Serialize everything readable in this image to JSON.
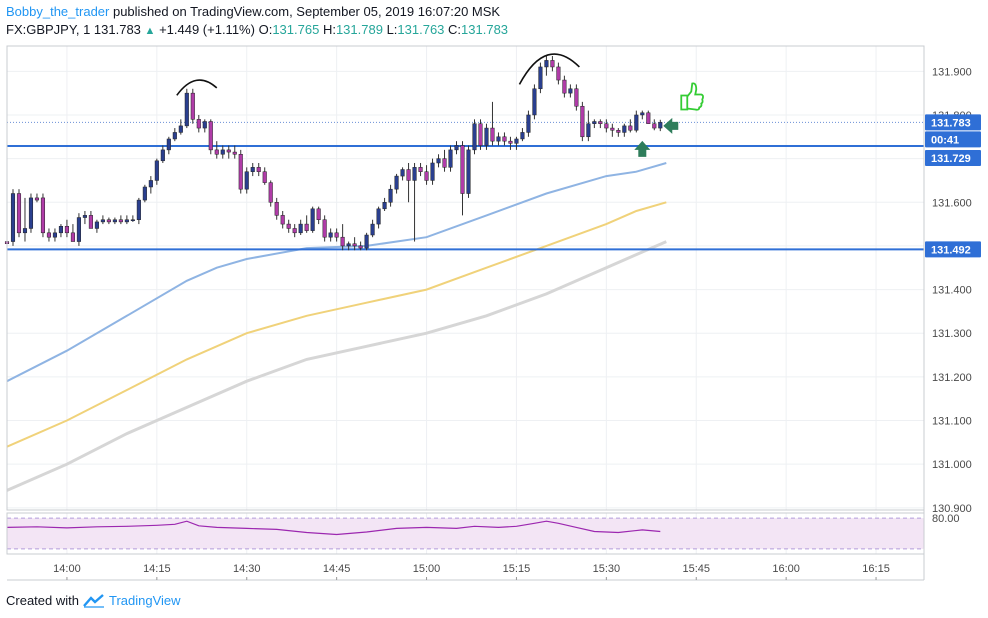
{
  "header": {
    "author": "Bobby_the_trader",
    "published": " published on TradingView.com, September 05, 2019 16:07:20 MSK",
    "symbol": "FX:GBPJPY, 1",
    "last": "131.783",
    "change_arrow": "▲",
    "change": "+1.449 (+1.11%)",
    "o_label": "O:",
    "o": "131.765",
    "h_label": "H:",
    "h": "131.789",
    "l_label": "L:",
    "l": "131.763",
    "c_label": "C:",
    "c": "131.783"
  },
  "footer": {
    "created_with": "Created with",
    "brand": "TradingView"
  },
  "colors": {
    "bull": "#2a3f8f",
    "bear": "#b03ca8",
    "ma_fast": "#8fb4e3",
    "ma_mid": "#f0d27a",
    "ma_slow": "#d6d6d6",
    "level": "#2f6fd6",
    "rsi": "#9c27b0",
    "rsi_band": "#f3e5f5",
    "price_tag": "#2f6fd6",
    "arrow": "#2e7d5b",
    "thumb": "#33cc33"
  },
  "price_tags": {
    "last": "131.783",
    "countdown": "00:41",
    "upper_level": "131.729",
    "lower_level": "131.492"
  },
  "rsi_axis_label": "80.00",
  "chart_data": {
    "type": "candlestick",
    "y_ticks": [
      "131.900",
      "131.800",
      "131.700",
      "131.600",
      "131.500",
      "131.400",
      "131.300",
      "131.200",
      "131.100",
      "131.000",
      "130.900"
    ],
    "y_tick_values": [
      131.9,
      131.8,
      131.7,
      131.6,
      131.5,
      131.4,
      131.3,
      131.2,
      131.1,
      131.0,
      130.9
    ],
    "ylim": [
      130.895,
      131.958
    ],
    "x_ticks": [
      "14:00",
      "14:15",
      "14:30",
      "14:45",
      "15:00",
      "15:15",
      "15:30",
      "15:45",
      "16:00",
      "16:15"
    ],
    "x_tick_minutes": [
      0,
      15,
      30,
      45,
      60,
      75,
      90,
      105,
      120,
      135
    ],
    "xlim_minutes": [
      -10,
      143
    ],
    "levels": [
      131.729,
      131.492
    ],
    "candles": [
      [
        -10,
        131.51,
        131.51,
        131.5,
        131.505
      ],
      [
        -9,
        131.51,
        131.63,
        131.5,
        131.62
      ],
      [
        -8,
        131.62,
        131.63,
        131.52,
        131.53
      ],
      [
        -7,
        131.53,
        131.61,
        131.51,
        131.54
      ],
      [
        -6,
        131.54,
        131.62,
        131.53,
        131.61
      ],
      [
        -5,
        131.61,
        131.62,
        131.6,
        131.605
      ],
      [
        -4,
        131.61,
        131.62,
        131.52,
        131.53
      ],
      [
        -3,
        131.53,
        131.54,
        131.51,
        131.52
      ],
      [
        -2,
        131.52,
        131.54,
        131.51,
        131.53
      ],
      [
        -1,
        131.53,
        131.55,
        131.52,
        131.545
      ],
      [
        0,
        131.545,
        131.56,
        131.52,
        131.53
      ],
      [
        1,
        131.53,
        131.55,
        131.51,
        131.51
      ],
      [
        2,
        131.51,
        131.575,
        131.5,
        131.565
      ],
      [
        3,
        131.565,
        131.58,
        131.55,
        131.57
      ],
      [
        4,
        131.57,
        131.58,
        131.54,
        131.54
      ],
      [
        5,
        131.54,
        131.56,
        131.53,
        131.555
      ],
      [
        6,
        131.555,
        131.57,
        131.55,
        131.56
      ],
      [
        7,
        131.56,
        131.565,
        131.55,
        131.555
      ],
      [
        8,
        131.555,
        131.565,
        131.55,
        131.56
      ],
      [
        9,
        131.56,
        131.57,
        131.55,
        131.555
      ],
      [
        10,
        131.555,
        131.57,
        131.55,
        131.56
      ],
      [
        11,
        131.56,
        131.57,
        131.555,
        131.56
      ],
      [
        12,
        131.56,
        131.61,
        131.55,
        131.605
      ],
      [
        13,
        131.605,
        131.64,
        131.6,
        131.635
      ],
      [
        14,
        131.635,
        131.66,
        131.62,
        131.65
      ],
      [
        15,
        131.65,
        131.7,
        131.64,
        131.695
      ],
      [
        16,
        131.695,
        131.73,
        131.69,
        131.72
      ],
      [
        17,
        131.72,
        131.75,
        131.71,
        131.745
      ],
      [
        18,
        131.745,
        131.77,
        131.74,
        131.76
      ],
      [
        19,
        131.76,
        131.79,
        131.755,
        131.775
      ],
      [
        20,
        131.775,
        131.86,
        131.77,
        131.85
      ],
      [
        21,
        131.85,
        131.86,
        131.78,
        131.79
      ],
      [
        22,
        131.79,
        131.8,
        131.76,
        131.77
      ],
      [
        23,
        131.77,
        131.79,
        131.76,
        131.785
      ],
      [
        24,
        131.785,
        131.79,
        131.71,
        131.72
      ],
      [
        25,
        131.72,
        131.74,
        131.7,
        131.71
      ],
      [
        26,
        131.71,
        131.73,
        131.7,
        131.72
      ],
      [
        27,
        131.72,
        131.73,
        131.7,
        131.715
      ],
      [
        28,
        131.715,
        131.73,
        131.7,
        131.71
      ],
      [
        29,
        131.71,
        131.72,
        131.62,
        131.63
      ],
      [
        30,
        131.63,
        131.68,
        131.62,
        131.67
      ],
      [
        31,
        131.67,
        131.69,
        131.66,
        131.68
      ],
      [
        32,
        131.68,
        131.69,
        131.66,
        131.67
      ],
      [
        33,
        131.67,
        131.68,
        131.64,
        131.645
      ],
      [
        34,
        131.645,
        131.65,
        131.59,
        131.6
      ],
      [
        35,
        131.6,
        131.61,
        131.56,
        131.57
      ],
      [
        36,
        131.57,
        131.58,
        131.54,
        131.55
      ],
      [
        37,
        131.55,
        131.56,
        131.53,
        131.54
      ],
      [
        38,
        131.54,
        131.55,
        131.52,
        131.53
      ],
      [
        39,
        131.53,
        131.56,
        131.525,
        131.55
      ],
      [
        40,
        131.55,
        131.57,
        131.53,
        131.535
      ],
      [
        41,
        131.535,
        131.59,
        131.53,
        131.585
      ],
      [
        42,
        131.585,
        131.59,
        131.55,
        131.56
      ],
      [
        43,
        131.56,
        131.57,
        131.51,
        131.52
      ],
      [
        44,
        131.52,
        131.54,
        131.51,
        131.53
      ],
      [
        45,
        131.53,
        131.54,
        131.51,
        131.52
      ],
      [
        46,
        131.52,
        131.55,
        131.49,
        131.5
      ],
      [
        47,
        131.5,
        131.51,
        131.49,
        131.505
      ],
      [
        48,
        131.505,
        131.52,
        131.49,
        131.5
      ],
      [
        49,
        131.5,
        131.51,
        131.49,
        131.495
      ],
      [
        50,
        131.495,
        131.53,
        131.49,
        131.525
      ],
      [
        51,
        131.525,
        131.56,
        131.52,
        131.55
      ],
      [
        52,
        131.55,
        131.59,
        131.54,
        131.585
      ],
      [
        53,
        131.585,
        131.61,
        131.58,
        131.6
      ],
      [
        54,
        131.6,
        131.64,
        131.59,
        131.63
      ],
      [
        55,
        131.63,
        131.665,
        131.62,
        131.66
      ],
      [
        56,
        131.66,
        131.68,
        131.65,
        131.675
      ],
      [
        57,
        131.675,
        131.69,
        131.6,
        131.65
      ],
      [
        58,
        131.65,
        131.69,
        131.51,
        131.68
      ],
      [
        59,
        131.68,
        131.69,
        131.66,
        131.67
      ],
      [
        60,
        131.67,
        131.685,
        131.64,
        131.65
      ],
      [
        61,
        131.65,
        131.7,
        131.64,
        131.69
      ],
      [
        62,
        131.69,
        131.71,
        131.68,
        131.7
      ],
      [
        63,
        131.7,
        131.72,
        131.67,
        131.68
      ],
      [
        64,
        131.68,
        131.73,
        131.67,
        131.72
      ],
      [
        65,
        131.72,
        131.74,
        131.71,
        131.73
      ],
      [
        66,
        131.73,
        131.74,
        131.57,
        131.62
      ],
      [
        67,
        131.62,
        131.73,
        131.61,
        131.72
      ],
      [
        68,
        131.72,
        131.79,
        131.71,
        131.78
      ],
      [
        69,
        131.78,
        131.79,
        131.72,
        131.73
      ],
      [
        70,
        131.73,
        131.78,
        131.72,
        131.77
      ],
      [
        71,
        131.77,
        131.83,
        131.73,
        131.74
      ],
      [
        72,
        131.74,
        131.76,
        131.73,
        131.75
      ],
      [
        73,
        131.75,
        131.76,
        131.73,
        131.74
      ],
      [
        74,
        131.74,
        131.75,
        131.72,
        131.735
      ],
      [
        75,
        131.735,
        131.75,
        131.72,
        131.745
      ],
      [
        76,
        131.745,
        131.77,
        131.74,
        131.76
      ],
      [
        77,
        131.76,
        131.81,
        131.75,
        131.8
      ],
      [
        78,
        131.8,
        131.87,
        131.79,
        131.86
      ],
      [
        79,
        131.86,
        131.92,
        131.85,
        131.91
      ],
      [
        80,
        131.91,
        131.935,
        131.89,
        131.925
      ],
      [
        81,
        131.925,
        131.935,
        131.9,
        131.91
      ],
      [
        82,
        131.91,
        131.92,
        131.87,
        131.88
      ],
      [
        83,
        131.88,
        131.89,
        131.84,
        131.85
      ],
      [
        84,
        131.85,
        131.87,
        131.84,
        131.86
      ],
      [
        85,
        131.86,
        131.87,
        131.81,
        131.82
      ],
      [
        86,
        131.82,
        131.83,
        131.74,
        131.75
      ],
      [
        87,
        131.75,
        131.81,
        131.74,
        131.78
      ],
      [
        88,
        131.78,
        131.79,
        131.77,
        131.785
      ],
      [
        89,
        131.785,
        131.79,
        131.77,
        131.78
      ],
      [
        90,
        131.78,
        131.79,
        131.76,
        131.77
      ],
      [
        91,
        131.77,
        131.78,
        131.75,
        131.765
      ],
      [
        92,
        131.765,
        131.77,
        131.75,
        131.76
      ],
      [
        93,
        131.76,
        131.78,
        131.75,
        131.775
      ],
      [
        94,
        131.775,
        131.79,
        131.76,
        131.765
      ],
      [
        95,
        131.765,
        131.81,
        131.76,
        131.8
      ],
      [
        96,
        131.8,
        131.81,
        131.79,
        131.805
      ],
      [
        97,
        131.805,
        131.81,
        131.78,
        131.78
      ],
      [
        98,
        131.78,
        131.79,
        131.765,
        131.77
      ],
      [
        99,
        131.77,
        131.789,
        131.763,
        131.783
      ]
    ],
    "ma_fast": [
      [
        -10,
        131.19
      ],
      [
        0,
        131.26
      ],
      [
        10,
        131.34
      ],
      [
        20,
        131.42
      ],
      [
        25,
        131.45
      ],
      [
        30,
        131.47
      ],
      [
        40,
        131.495
      ],
      [
        50,
        131.5
      ],
      [
        60,
        131.52
      ],
      [
        70,
        131.57
      ],
      [
        80,
        131.62
      ],
      [
        90,
        131.66
      ],
      [
        95,
        131.67
      ],
      [
        100,
        131.69
      ]
    ],
    "ma_mid": [
      [
        -10,
        131.04
      ],
      [
        0,
        131.1
      ],
      [
        10,
        131.17
      ],
      [
        20,
        131.24
      ],
      [
        30,
        131.3
      ],
      [
        40,
        131.34
      ],
      [
        50,
        131.37
      ],
      [
        60,
        131.4
      ],
      [
        70,
        131.45
      ],
      [
        80,
        131.5
      ],
      [
        90,
        131.55
      ],
      [
        95,
        131.58
      ],
      [
        100,
        131.6
      ]
    ],
    "ma_slow": [
      [
        -10,
        130.94
      ],
      [
        0,
        131.0
      ],
      [
        10,
        131.07
      ],
      [
        20,
        131.13
      ],
      [
        30,
        131.19
      ],
      [
        40,
        131.24
      ],
      [
        50,
        131.27
      ],
      [
        60,
        131.3
      ],
      [
        70,
        131.34
      ],
      [
        80,
        131.39
      ],
      [
        90,
        131.45
      ],
      [
        95,
        131.48
      ],
      [
        100,
        131.51
      ]
    ],
    "rsi": [
      [
        -10,
        62
      ],
      [
        -5,
        63
      ],
      [
        0,
        61
      ],
      [
        5,
        63
      ],
      [
        10,
        64
      ],
      [
        15,
        66
      ],
      [
        18,
        68
      ],
      [
        20,
        74
      ],
      [
        22,
        65
      ],
      [
        25,
        62
      ],
      [
        30,
        60
      ],
      [
        35,
        58
      ],
      [
        40,
        52
      ],
      [
        45,
        48
      ],
      [
        50,
        53
      ],
      [
        55,
        60
      ],
      [
        60,
        62
      ],
      [
        65,
        60
      ],
      [
        68,
        64
      ],
      [
        72,
        62
      ],
      [
        75,
        64
      ],
      [
        78,
        70
      ],
      [
        80,
        74
      ],
      [
        82,
        70
      ],
      [
        85,
        62
      ],
      [
        88,
        54
      ],
      [
        92,
        52
      ],
      [
        96,
        57
      ],
      [
        99,
        54
      ]
    ],
    "rsi_band": [
      20,
      80
    ],
    "rsi_ylim": [
      10,
      90
    ]
  }
}
